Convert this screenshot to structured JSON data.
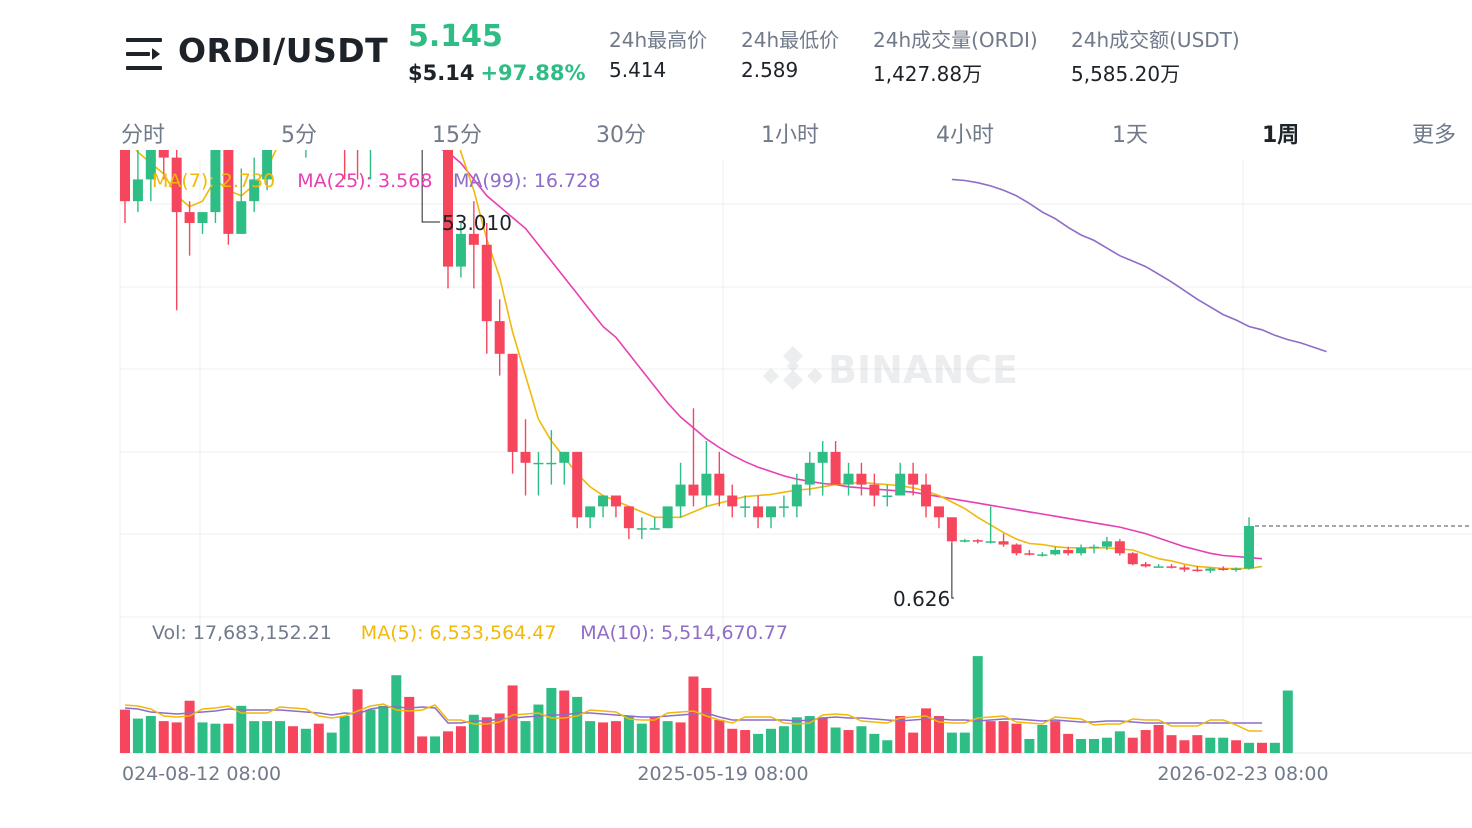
{
  "header": {
    "pair": "ORDI/USDT",
    "price": "5.145",
    "usd_price": "$5.14",
    "change": "+97.88%",
    "stats": [
      {
        "label": "24h最高价",
        "value": "5.414"
      },
      {
        "label": "24h最低价",
        "value": "2.589"
      },
      {
        "label": "24h成交量(ORDI)",
        "value": "1,427.88万"
      },
      {
        "label": "24h成交额(USDT)",
        "value": "5,585.20万"
      }
    ]
  },
  "tabs": [
    {
      "label": "分时",
      "active": false
    },
    {
      "label": "5分",
      "active": false
    },
    {
      "label": "15分",
      "active": false
    },
    {
      "label": "30分",
      "active": false
    },
    {
      "label": "1小时",
      "active": false
    },
    {
      "label": "4小时",
      "active": false
    },
    {
      "label": "1天",
      "active": false
    },
    {
      "label": "1周",
      "active": true
    },
    {
      "label": "更多",
      "active": false
    }
  ],
  "colors": {
    "up": "#2ebd85",
    "down": "#f6465d",
    "ma7": "#f0b90b",
    "ma25": "#e83fb3",
    "ma99": "#8e6cc8",
    "vol_ma10": "#8e6cc8"
  },
  "watermark": "BINANCE",
  "chart_data": {
    "type": "candlestick",
    "interval": "1周",
    "price_legend": [
      {
        "label": "MA(7): 2.730",
        "color": "#f0b90b"
      },
      {
        "label": "MA(25): 3.568",
        "color": "#e83fb3"
      },
      {
        "label": "MA(99): 16.728",
        "color": "#8e6cc8"
      }
    ],
    "volume_legend": [
      {
        "label": "Vol: 17,683,152.21",
        "color": "#707a8a"
      },
      {
        "label": "MA(5): 6,533,564.47",
        "color": "#f0b90b"
      },
      {
        "label": "MA(10): 5,514,670.77",
        "color": "#8e6cc8"
      }
    ],
    "annotations": {
      "high": "53.010",
      "low": "0.626"
    },
    "x_tick_labels": [
      "024-08-12 08:00",
      "2025-05-19 08:00",
      "2026-02-23 08:00"
    ],
    "last_close": 5.145,
    "candles": [
      [
        40,
        42,
        30,
        32
      ],
      [
        32,
        40,
        31,
        34
      ],
      [
        34,
        46,
        32,
        46
      ],
      [
        46,
        47,
        34,
        36
      ],
      [
        36,
        38,
        22,
        31
      ],
      [
        31,
        32,
        27,
        30
      ],
      [
        30,
        31,
        29,
        31
      ],
      [
        31,
        38,
        30,
        37
      ],
      [
        37,
        38,
        28,
        29
      ],
      [
        29,
        35,
        29,
        32
      ],
      [
        32,
        36,
        31,
        34
      ],
      [
        34,
        44,
        33,
        43
      ],
      [
        43,
        46,
        40,
        44
      ],
      [
        44,
        46,
        38,
        40
      ],
      [
        40,
        42,
        36,
        41
      ],
      [
        41,
        43,
        38,
        40
      ],
      [
        40,
        44,
        39,
        42
      ],
      [
        42,
        45,
        34,
        39
      ],
      [
        39,
        42,
        34,
        37
      ],
      [
        37,
        46,
        34,
        44
      ],
      [
        44,
        49,
        39,
        42
      ],
      [
        42,
        48,
        40,
        44
      ],
      [
        44,
        48,
        42,
        46
      ],
      [
        46,
        52,
        41,
        51
      ],
      [
        51,
        51,
        37,
        37
      ],
      [
        37,
        40,
        24,
        26
      ],
      [
        26,
        30,
        25,
        29
      ],
      [
        29,
        32,
        24,
        28
      ],
      [
        28,
        30,
        18,
        21
      ],
      [
        21,
        23,
        16,
        18
      ],
      [
        18,
        18,
        7,
        9
      ],
      [
        9,
        12,
        5,
        8
      ],
      [
        8,
        9,
        5,
        8
      ],
      [
        8,
        11,
        6,
        8
      ],
      [
        8,
        9,
        6,
        9
      ],
      [
        9,
        9,
        2,
        3
      ],
      [
        3,
        4,
        2,
        4
      ],
      [
        4,
        5,
        3,
        5
      ],
      [
        5,
        5,
        3,
        4
      ],
      [
        4,
        4,
        1,
        2
      ],
      [
        2,
        3,
        1,
        2
      ],
      [
        2,
        3,
        2,
        2
      ],
      [
        2,
        4,
        2,
        4
      ],
      [
        4,
        8,
        3,
        6
      ],
      [
        6,
        13,
        4,
        5
      ],
      [
        5,
        10,
        4,
        7
      ],
      [
        7,
        9,
        4,
        5
      ],
      [
        5,
        6,
        3,
        4
      ],
      [
        4,
        5,
        3,
        4
      ],
      [
        4,
        5,
        2,
        3
      ],
      [
        3,
        4,
        2,
        4
      ],
      [
        4,
        5,
        3,
        4
      ],
      [
        4,
        7,
        3,
        6
      ],
      [
        6,
        9,
        5,
        8
      ],
      [
        8,
        10,
        5,
        9
      ],
      [
        9,
        10,
        6,
        6
      ],
      [
        6,
        8,
        5,
        7
      ],
      [
        7,
        8,
        5,
        6
      ],
      [
        6,
        7,
        4,
        5
      ],
      [
        5,
        6,
        4,
        5
      ],
      [
        5,
        8,
        5,
        7
      ],
      [
        7,
        8,
        5,
        6
      ],
      [
        6,
        7,
        3,
        4
      ],
      [
        4,
        4,
        2,
        3
      ],
      [
        3,
        3,
        0.626,
        0.8
      ],
      [
        0.8,
        1,
        0.7,
        0.9
      ],
      [
        0.9,
        1,
        0.6,
        0.8
      ],
      [
        0.8,
        4,
        0.6,
        0.8
      ],
      [
        0.8,
        1.5,
        0.3,
        0.5
      ],
      [
        0.5,
        0.6,
        -0.5,
        -0.3
      ],
      [
        -0.3,
        0,
        -0.5,
        -0.4
      ],
      [
        -0.4,
        -0.2,
        -0.6,
        -0.4
      ],
      [
        -0.4,
        0.3,
        -0.5,
        0
      ],
      [
        0,
        0.3,
        -0.5,
        -0.3
      ],
      [
        -0.3,
        0.5,
        -0.5,
        0.2
      ],
      [
        0.2,
        0.5,
        -0.3,
        0.3
      ],
      [
        0.3,
        1.2,
        0,
        0.8
      ],
      [
        0.8,
        1,
        -0.5,
        -0.3
      ],
      [
        -0.3,
        -0.2,
        -1.4,
        -1.3
      ],
      [
        -1.3,
        -1.1,
        -1.6,
        -1.5
      ],
      [
        -1.5,
        -1.3,
        -1.6,
        -1.5
      ],
      [
        -1.5,
        -1.3,
        -1.7,
        -1.6
      ],
      [
        -1.6,
        -1.4,
        -2,
        -1.8
      ],
      [
        -1.8,
        -1.5,
        -2,
        -1.9
      ],
      [
        -1.9,
        -1.6,
        -2.1,
        -1.7
      ],
      [
        -1.7,
        -1.5,
        -1.9,
        -1.8
      ],
      [
        -1.8,
        -1.6,
        -2,
        -1.7
      ],
      [
        -1.7,
        3,
        -1.8,
        2.2
      ]
    ],
    "ma7": [
      38,
      36.5,
      35.5,
      34.5,
      32.5,
      31.5,
      32,
      34,
      33,
      32.5,
      33.5,
      35,
      37.5,
      39.5,
      40.5,
      41,
      41,
      41,
      41,
      41.5,
      42,
      42,
      42.5,
      45,
      43.5,
      41,
      36.5,
      33,
      28.5,
      25,
      20,
      16,
      12,
      10,
      8.5,
      7,
      5.8,
      5,
      4.5,
      4,
      3.5,
      3,
      3,
      3,
      3.5,
      4,
      4.3,
      4.6,
      4.9,
      5,
      5.1,
      5.3,
      5.5,
      5.6,
      5.8,
      6,
      6.1,
      6.2,
      6.1,
      6,
      5.9,
      5.7,
      5.4,
      5,
      4.4,
      3.8,
      3,
      2.3,
      1.6,
      1,
      0.6,
      0.5,
      0.3,
      0.2,
      0.2,
      0.2,
      0.2,
      0.1,
      0,
      -0.4,
      -0.8,
      -1,
      -1.3,
      -1.5,
      -1.6,
      -1.7,
      -1.7,
      -1.7,
      -1.5
    ],
    "ma25": [
      62,
      60,
      59.5,
      58,
      56,
      54,
      52,
      50,
      47,
      45,
      43.5,
      42,
      40,
      39.5,
      39,
      38.5,
      38.5,
      38.5,
      38.5,
      38.5,
      38,
      38,
      37.5,
      37.5,
      37,
      36.5,
      35.5,
      34,
      32.5,
      31.5,
      30.5,
      29.5,
      28,
      26.5,
      25,
      23.5,
      22,
      20.5,
      19.5,
      18,
      16.5,
      15,
      13.5,
      12.2,
      11.2,
      10.2,
      9.4,
      8.7,
      8.1,
      7.6,
      7.2,
      6.8,
      6.5,
      6.3,
      6.1,
      6,
      5.8,
      5.7,
      5.6,
      5.5,
      5.4,
      5.3,
      5.1,
      4.9,
      4.7,
      4.5,
      4.3,
      4.1,
      3.9,
      3.7,
      3.5,
      3.3,
      3.1,
      2.9,
      2.7,
      2.5,
      2.3,
      2.1,
      1.8,
      1.5,
      1.1,
      0.7,
      0.3,
      0,
      -0.3,
      -0.5,
      -0.6,
      -0.7,
      -0.8
    ],
    "ma99": {
      "start_index": 64,
      "values": [
        34,
        33.9,
        33.7,
        33.4,
        33,
        32.5,
        31.8,
        31,
        30.4,
        29.6,
        28.9,
        28.4,
        27.7,
        27,
        26.5,
        26,
        25.3,
        24.6,
        23.8,
        23,
        22.3,
        21.6,
        21.1,
        20.5,
        20.2,
        19.7,
        19.3,
        19,
        18.6,
        18.2
      ]
    },
    "volume": [
      45,
      44,
      41,
      40,
      39,
      40,
      41,
      42,
      44,
      43,
      43,
      43,
      43,
      42,
      41,
      40,
      38,
      40,
      39,
      44,
      46,
      46,
      45,
      46,
      45,
      30,
      30,
      32,
      32,
      34,
      35,
      36,
      37,
      38,
      38,
      40,
      40,
      39,
      38,
      37,
      36,
      36,
      37,
      38,
      39,
      40,
      36,
      33,
      33,
      33,
      33,
      33,
      32,
      33,
      35,
      36,
      35,
      35,
      34,
      33,
      32,
      33,
      34,
      34,
      33,
      33,
      32,
      33,
      34,
      34,
      33,
      32,
      33,
      32,
      31,
      31,
      32,
      32,
      31,
      30,
      30,
      30,
      30,
      30,
      30,
      30,
      30,
      30,
      30
    ],
    "volume_bars": [
      [
        17.0,
        0
      ],
      [
        13.5,
        1
      ],
      [
        14.5,
        1
      ],
      [
        12.5,
        0
      ],
      [
        12.0,
        0
      ],
      [
        20.5,
        0
      ],
      [
        12.0,
        1
      ],
      [
        11.5,
        1
      ],
      [
        11.5,
        0
      ],
      [
        18.5,
        1
      ],
      [
        12.5,
        1
      ],
      [
        12.5,
        1
      ],
      [
        12.5,
        1
      ],
      [
        10.5,
        0
      ],
      [
        9.5,
        1
      ],
      [
        11.5,
        0
      ],
      [
        8.0,
        1
      ],
      [
        14.5,
        1
      ],
      [
        25.0,
        0
      ],
      [
        17.0,
        1
      ],
      [
        18.5,
        1
      ],
      [
        30.5,
        1
      ],
      [
        22.0,
        0
      ],
      [
        6.5,
        0
      ],
      [
        6.5,
        1
      ],
      [
        8.5,
        0
      ],
      [
        10.5,
        0
      ],
      [
        15.0,
        1
      ],
      [
        14.0,
        0
      ],
      [
        15.5,
        0
      ],
      [
        26.5,
        0
      ],
      [
        12.5,
        1
      ],
      [
        19.0,
        1
      ],
      [
        25.5,
        1
      ],
      [
        24.5,
        0
      ],
      [
        22.0,
        1
      ],
      [
        12.5,
        1
      ],
      [
        12.0,
        0
      ],
      [
        12.5,
        0
      ],
      [
        14.5,
        1
      ],
      [
        11.5,
        1
      ],
      [
        14.0,
        0
      ],
      [
        12.5,
        1
      ],
      [
        12.0,
        0
      ],
      [
        30.0,
        0
      ],
      [
        25.5,
        0
      ],
      [
        13.0,
        0
      ],
      [
        9.5,
        0
      ],
      [
        9.0,
        0
      ],
      [
        7.5,
        1
      ],
      [
        9.5,
        1
      ],
      [
        10.5,
        1
      ],
      [
        14.0,
        1
      ],
      [
        14.5,
        1
      ],
      [
        14.0,
        0
      ],
      [
        10.0,
        1
      ],
      [
        9.0,
        0
      ],
      [
        10.5,
        1
      ],
      [
        7.5,
        1
      ],
      [
        5.0,
        1
      ],
      [
        14.5,
        0
      ],
      [
        8.0,
        0
      ],
      [
        17.5,
        0
      ],
      [
        14.5,
        0
      ],
      [
        8.0,
        1
      ],
      [
        8.0,
        1
      ],
      [
        38.0,
        1
      ],
      [
        12.5,
        0
      ],
      [
        12.5,
        0
      ],
      [
        11.5,
        0
      ],
      [
        5.5,
        1
      ],
      [
        11.0,
        1
      ],
      [
        12.5,
        0
      ],
      [
        7.5,
        0
      ],
      [
        5.5,
        1
      ],
      [
        5.5,
        1
      ],
      [
        6.0,
        1
      ],
      [
        8.5,
        1
      ],
      [
        6.0,
        0
      ],
      [
        9.0,
        0
      ],
      [
        11.0,
        0
      ],
      [
        7.0,
        0
      ],
      [
        5.0,
        0
      ],
      [
        7.0,
        0
      ],
      [
        6.0,
        1
      ],
      [
        6.0,
        1
      ],
      [
        5.0,
        0
      ],
      [
        4.0,
        1
      ],
      [
        4.0,
        0
      ],
      [
        4.0,
        1
      ],
      [
        24.5,
        1
      ]
    ]
  }
}
